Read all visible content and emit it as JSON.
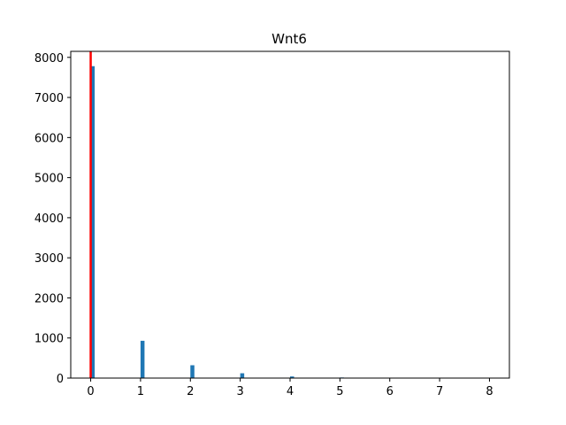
{
  "chart_data": {
    "type": "bar",
    "title": "Wnt6",
    "xlabel": "",
    "ylabel": "",
    "xlim": [
      -0.4,
      8.4
    ],
    "ylim": [
      0,
      8150
    ],
    "xticks": [
      0,
      1,
      2,
      3,
      4,
      5,
      6,
      7,
      8
    ],
    "yticks": [
      0,
      1000,
      2000,
      3000,
      4000,
      5000,
      6000,
      7000,
      8000
    ],
    "grid": false,
    "legend": "none",
    "bar_color": "#1f77b4",
    "bin_width": 0.08,
    "x": [
      0,
      1,
      2,
      3,
      4,
      5
    ],
    "values": [
      7780,
      930,
      320,
      120,
      40,
      15
    ],
    "annotations": [
      {
        "type": "vertical-line",
        "x": 0,
        "color": "#ff0000"
      }
    ]
  }
}
